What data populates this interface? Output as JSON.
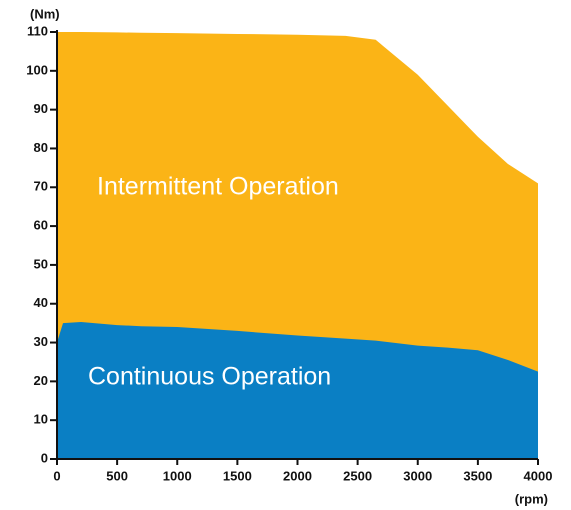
{
  "chart_data": {
    "type": "area",
    "ylabel": "(Nm)",
    "xlabel": "(rpm)",
    "x": [
      0,
      50,
      200,
      500,
      700,
      1000,
      1500,
      2000,
      2400,
      2650,
      3000,
      3250,
      3500,
      3750,
      4000
    ],
    "series": [
      {
        "name": "Intermittent Operation",
        "color": "#fbb416",
        "values": [
          110,
          110,
          110,
          109.9,
          109.8,
          109.7,
          109.5,
          109.3,
          109,
          108,
          99,
          91,
          83,
          76,
          71
        ]
      },
      {
        "name": "Continuous Operation",
        "color": "#0a7fc4",
        "values": [
          30,
          35,
          35.3,
          34.5,
          34.2,
          34,
          33,
          31.8,
          31,
          30.5,
          29.2,
          28.7,
          28,
          25.5,
          22.5
        ]
      }
    ],
    "xlim": [
      0,
      4000
    ],
    "xticks": [
      0,
      500,
      1000,
      1500,
      2000,
      2500,
      3000,
      3500,
      4000
    ],
    "ylim": [
      0,
      110
    ],
    "yticks": [
      0,
      10,
      20,
      30,
      40,
      50,
      60,
      70,
      80,
      90,
      100,
      110
    ]
  }
}
